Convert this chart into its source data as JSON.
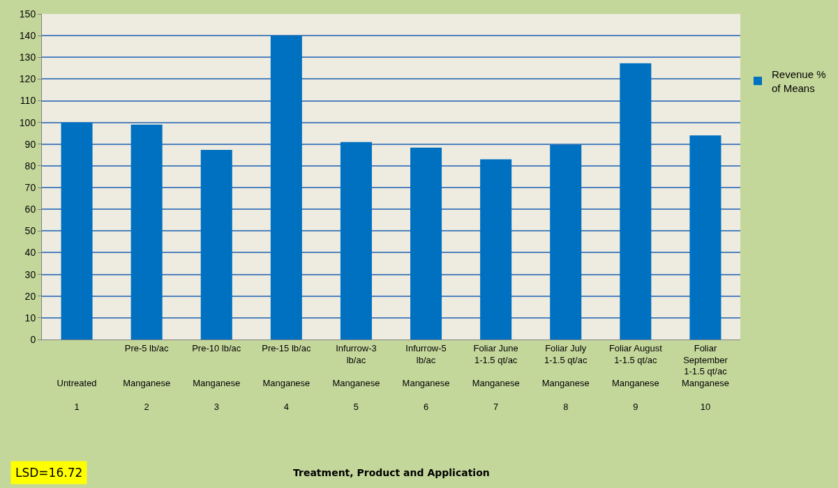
{
  "chart_data": {
    "type": "bar",
    "categories": [
      "\nUntreated\n1",
      "Pre-5 lb/ac\nManganese\n2",
      "Pre-10 lb/ac\nManganese\n3",
      "Pre-15 lb/ac\nManganese\n4",
      "Infurrow-3 lb/ac\nManganese\n5",
      "Infurrow-5 lb/ac\nManganese\n6",
      "Foliar June 1-1.5 qt/ac\nManganese\n7",
      "Foliar July 1-1.5 qt/ac\nManganese\n8",
      "Foliar August 1-1.5 qt/ac\nManganese\n9",
      "Foliar September 1-1.5 qt/ac\nManganese\n10"
    ],
    "series": [
      {
        "name": "Revenue % of Means",
        "color": "#0070c0",
        "values": [
          100,
          99,
          87.4,
          140,
          91,
          88.4,
          83,
          89.7,
          127.3,
          94
        ]
      }
    ],
    "ylim": [
      0,
      150
    ],
    "yticks": [
      0,
      10,
      20,
      30,
      40,
      50,
      60,
      70,
      80,
      90,
      100,
      110,
      120,
      130,
      140,
      150
    ],
    "grid": "y",
    "legend": "right",
    "annotations": [
      "LSD=16.72",
      "Treatment, Product and Application"
    ]
  }
}
